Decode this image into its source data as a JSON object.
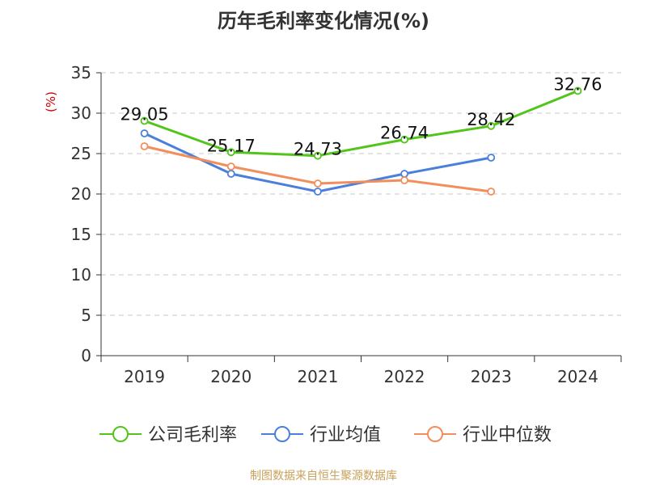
{
  "title": "历年毛利率变化情况(%)",
  "footer": "制图数据来自恒生聚源数据库",
  "chart_data": {
    "type": "line",
    "title": "历年毛利率变化情况(%)",
    "ylabel": "(%)",
    "xlabel": "",
    "categories": [
      "2019",
      "2020",
      "2021",
      "2022",
      "2023",
      "2024"
    ],
    "ylim": [
      0,
      35
    ],
    "yticks": [
      0,
      5,
      10,
      15,
      20,
      25,
      30,
      35
    ],
    "grid": true,
    "legend_position": "bottom",
    "series": [
      {
        "name": "公司毛利率",
        "color": "#52c41a",
        "show_labels": true,
        "values": [
          29.05,
          25.17,
          24.73,
          26.74,
          28.42,
          32.76
        ],
        "labels": [
          "29.05",
          "25.17",
          "24.73",
          "26.74",
          "28.42",
          "32.76"
        ]
      },
      {
        "name": "行业均值",
        "color": "#4a7fdc",
        "show_labels": false,
        "values": [
          27.5,
          22.5,
          20.3,
          22.5,
          24.5,
          null
        ]
      },
      {
        "name": "行业中位数",
        "color": "#f28e5b",
        "show_labels": false,
        "values": [
          25.9,
          23.4,
          21.3,
          21.7,
          20.3,
          null
        ]
      }
    ]
  }
}
